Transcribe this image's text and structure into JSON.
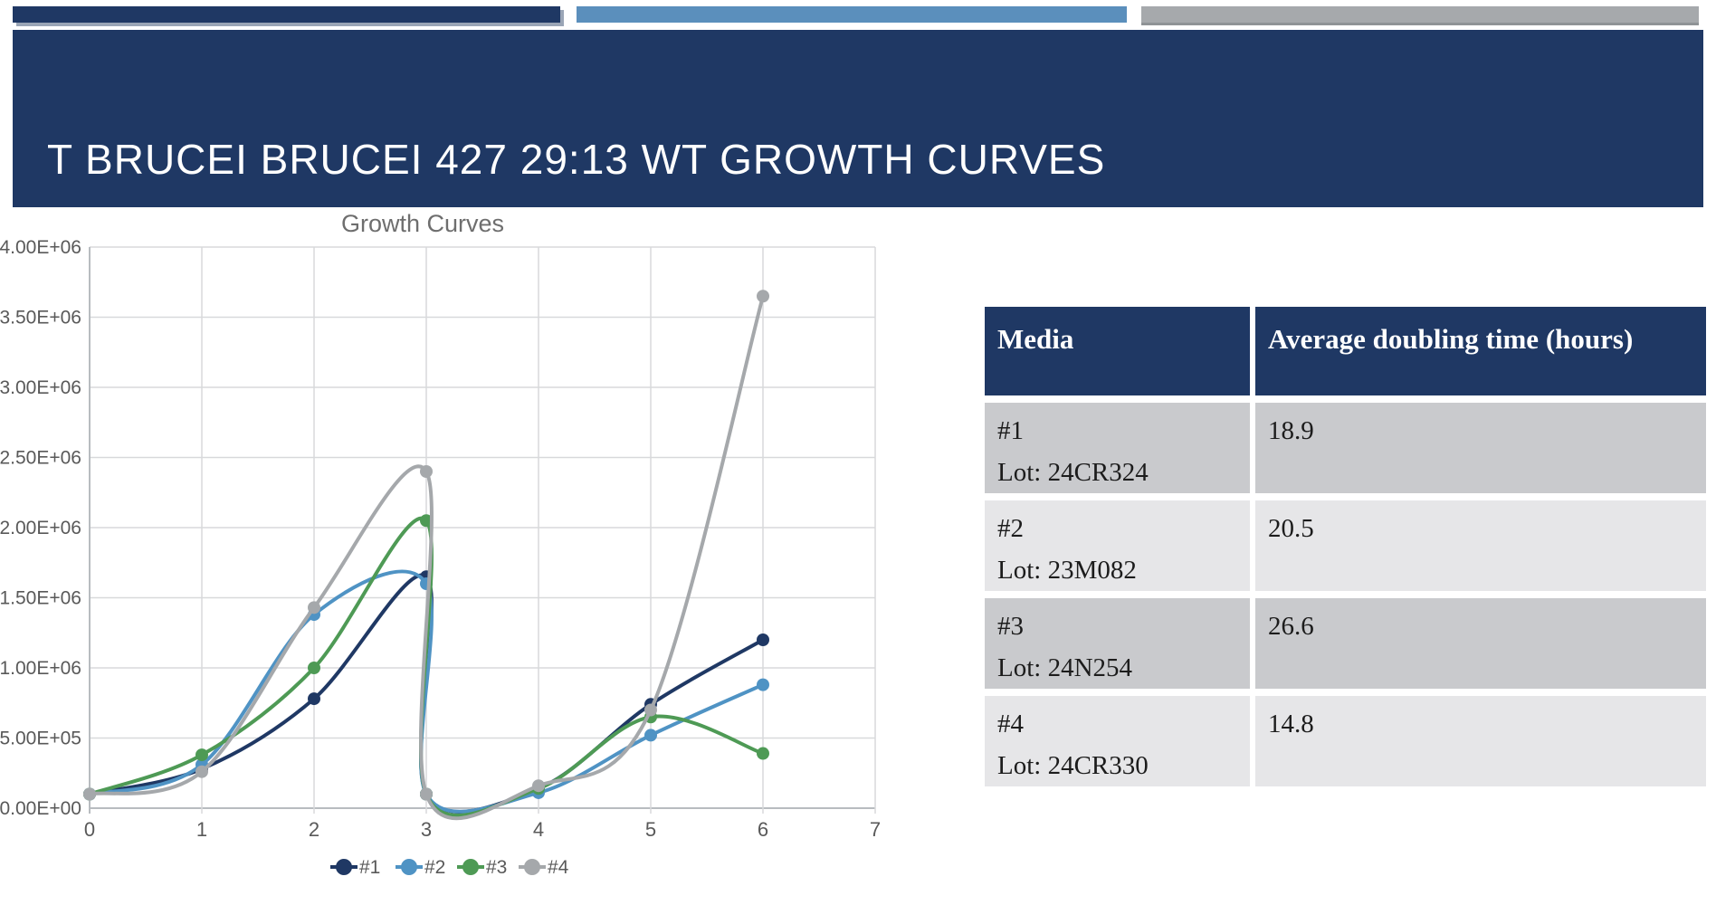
{
  "slide": {
    "title": "T BRUCEI BRUCEI 427 29:13 WT GROWTH CURVES",
    "accent_colors": {
      "navy": "#1f3864",
      "blue": "#5b8fbc",
      "gray": "#a6a9ac"
    },
    "background": "#ffffff"
  },
  "chart_data": {
    "type": "line",
    "title": "Growth Curves",
    "xlabel": "",
    "ylabel": "",
    "xlim": [
      0,
      7
    ],
    "ylim": [
      0,
      4000000
    ],
    "grid": true,
    "smooth": true,
    "marker": "circle",
    "legend_position": "bottom",
    "x_ticks": [
      0,
      1,
      2,
      3,
      4,
      5,
      6,
      7
    ],
    "y_ticks": [
      "0.00E+00",
      "5.00E+05",
      "1.00E+06",
      "1.50E+06",
      "2.00E+06",
      "2.50E+06",
      "3.00E+06",
      "3.50E+06",
      "4.00E+06"
    ],
    "text_color": "#595959",
    "title_color": "#6e6e6e",
    "gridline_color": "#d8d9db",
    "axis_color": "#b8bcc0",
    "series": [
      {
        "name": "#1",
        "color": "#1f3864",
        "x": [
          0,
          1,
          2,
          3,
          3,
          4,
          5,
          6
        ],
        "y": [
          100000,
          280000,
          780000,
          1650000,
          100000,
          140000,
          740000,
          1200000
        ]
      },
      {
        "name": "#2",
        "color": "#4f93c4",
        "x": [
          0,
          1,
          2,
          3,
          3,
          4,
          5,
          6
        ],
        "y": [
          100000,
          310000,
          1380000,
          1600000,
          100000,
          110000,
          520000,
          880000
        ]
      },
      {
        "name": "#3",
        "color": "#4e9a55",
        "x": [
          0,
          1,
          2,
          3,
          3,
          4,
          5,
          6
        ],
        "y": [
          100000,
          380000,
          1000000,
          2050000,
          100000,
          140000,
          650000,
          390000
        ]
      },
      {
        "name": "#4",
        "color": "#a5a8ab",
        "x": [
          0,
          1,
          2,
          3,
          3,
          4,
          5,
          6
        ],
        "y": [
          100000,
          260000,
          1430000,
          2400000,
          100000,
          160000,
          700000,
          3650000
        ]
      }
    ]
  },
  "table": {
    "header_bg": "#1f3864",
    "row_bg_dark": "#c9cacd",
    "row_bg_light": "#e6e6e8",
    "headers": [
      "Media",
      "Average doubling time (hours)"
    ],
    "rows": [
      {
        "media_line1": "#1",
        "media_line2": "Lot: 24CR324",
        "value": "18.9"
      },
      {
        "media_line1": "#2",
        "media_line2": "Lot: 23M082",
        "value": "20.5"
      },
      {
        "media_line1": "#3",
        "media_line2": "Lot: 24N254",
        "value": "26.6"
      },
      {
        "media_line1": "#4",
        "media_line2": "Lot: 24CR330",
        "value": "14.8"
      }
    ]
  }
}
